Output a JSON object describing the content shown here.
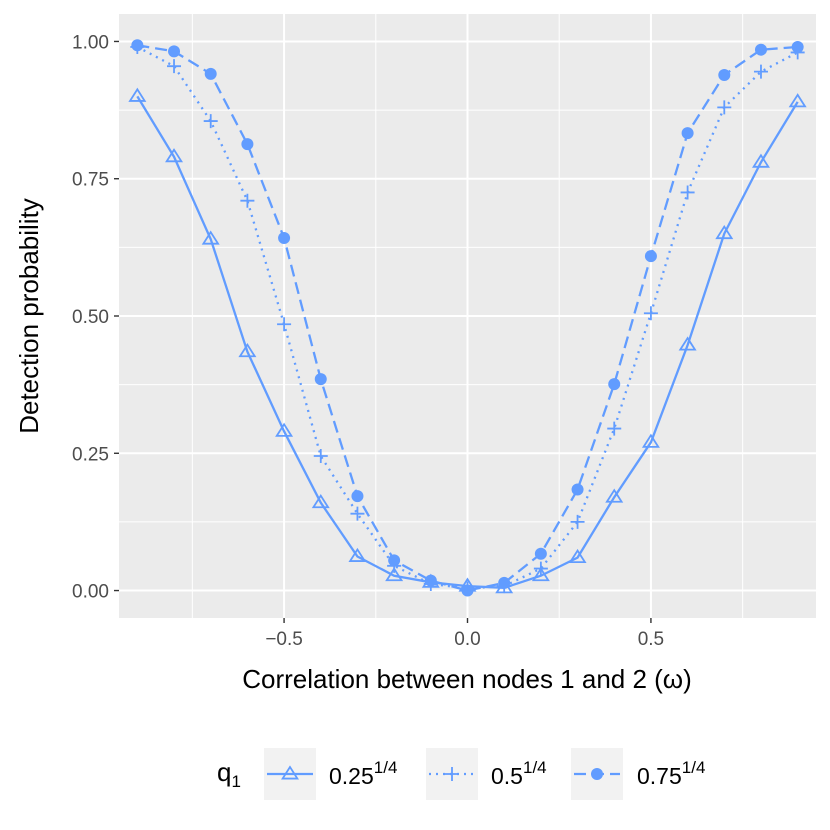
{
  "chart_data": {
    "type": "line",
    "xlabel": "Correlation between nodes 1 and 2 (ω)",
    "ylabel": "Detection probability",
    "xlim": [
      -0.95,
      0.95
    ],
    "ylim": [
      -0.05,
      1.05
    ],
    "x_ticks": [
      -0.5,
      0.0,
      0.5
    ],
    "x_tick_labels": [
      "−0.5",
      "0.0",
      "0.5"
    ],
    "y_ticks": [
      0.0,
      0.25,
      0.5,
      0.75,
      1.0
    ],
    "y_tick_labels": [
      "0.00",
      "0.25",
      "0.50",
      "0.75",
      "1.00"
    ],
    "grid": true,
    "color": "#619CFF",
    "legend": {
      "title_base": "q",
      "title_sub": "1",
      "placement": "bottom"
    },
    "x": [
      -0.9,
      -0.8,
      -0.7,
      -0.6,
      -0.5,
      -0.4,
      -0.3,
      -0.2,
      -0.1,
      0.0,
      0.1,
      0.2,
      0.3,
      0.4,
      0.5,
      0.6,
      0.7,
      0.8,
      0.9
    ],
    "series": [
      {
        "name": "0.25^(1/4)",
        "label_base": "0.25",
        "label_exp": "1/4",
        "line": "solid",
        "marker": "triangle",
        "values": [
          0.9,
          0.79,
          0.64,
          0.435,
          0.29,
          0.16,
          0.062,
          0.027,
          0.015,
          0.008,
          0.005,
          0.027,
          0.06,
          0.17,
          0.27,
          0.447,
          0.65,
          0.78,
          0.89
        ]
      },
      {
        "name": "0.5^(1/4)",
        "label_base": "0.5",
        "label_exp": "1/4",
        "line": "dotted",
        "marker": "plus",
        "values": [
          0.99,
          0.955,
          0.855,
          0.71,
          0.485,
          0.245,
          0.14,
          0.045,
          0.012,
          0.004,
          0.008,
          0.04,
          0.125,
          0.295,
          0.505,
          0.725,
          0.88,
          0.945,
          0.98
        ]
      },
      {
        "name": "0.75^(1/4)",
        "label_base": "0.75",
        "label_exp": "1/4",
        "line": "dashed",
        "marker": "circle",
        "values": [
          0.993,
          0.982,
          0.941,
          0.813,
          0.642,
          0.385,
          0.172,
          0.055,
          0.018,
          0.0,
          0.014,
          0.067,
          0.184,
          0.376,
          0.609,
          0.833,
          0.939,
          0.985,
          0.99
        ]
      }
    ]
  }
}
